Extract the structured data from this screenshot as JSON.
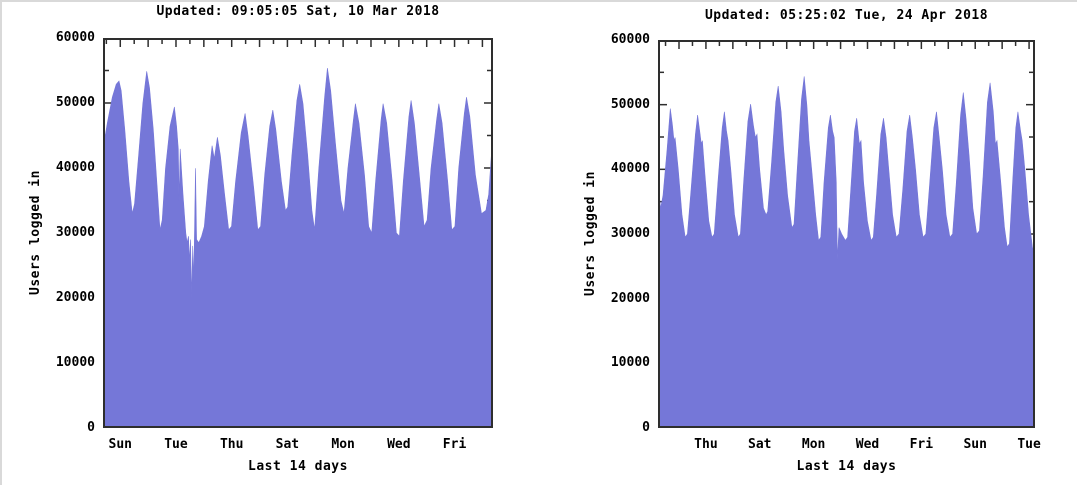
{
  "page": {
    "background": "#ffffff",
    "fill_color": "#7577d8",
    "axis_color": "#2e2e2e",
    "text_color": "#000000"
  },
  "chart_data": [
    {
      "type": "area",
      "title": "Updated: 09:05:05 Sat, 10 Mar 2018",
      "ylabel": "Users logged in",
      "xlabel": "Last 14 days",
      "ylim": [
        0,
        60000
      ],
      "yticks": [
        0,
        10000,
        20000,
        30000,
        40000,
        50000,
        60000
      ],
      "ytick_labels": [
        "0",
        "10000",
        "20000",
        "30000",
        "40000",
        "50000",
        "60000"
      ],
      "xlim_days": [
        0,
        14
      ],
      "x_tick_labels": [
        "Sun",
        "Tue",
        "Thu",
        "Sat",
        "Mon",
        "Wed",
        "Fri"
      ],
      "x_first_label_day": 0.62,
      "x_label_step_days": 2,
      "grid": false,
      "fill_color": "#7577d8",
      "series": [
        [
          0,
          44000
        ],
        [
          0.12,
          47000
        ],
        [
          0.3,
          51000
        ],
        [
          0.44,
          53000
        ],
        [
          0.54,
          53500
        ],
        [
          0.62,
          52000
        ],
        [
          0.75,
          46000
        ],
        [
          0.9,
          38000
        ],
        [
          1.02,
          33000
        ],
        [
          1.1,
          34500
        ],
        [
          1.25,
          42000
        ],
        [
          1.4,
          50000
        ],
        [
          1.54,
          55000
        ],
        [
          1.64,
          52500
        ],
        [
          1.78,
          46000
        ],
        [
          1.92,
          37000
        ],
        [
          2.02,
          30500
        ],
        [
          2.1,
          32000
        ],
        [
          2.22,
          40000
        ],
        [
          2.38,
          46500
        ],
        [
          2.54,
          49500
        ],
        [
          2.62,
          46500
        ],
        [
          2.68,
          43000
        ],
        [
          2.71,
          35000
        ],
        [
          2.75,
          43000
        ],
        [
          2.85,
          36000
        ],
        [
          2.95,
          30000
        ],
        [
          3.0,
          28500
        ],
        [
          3.05,
          29500
        ],
        [
          3.08,
          25500
        ],
        [
          3.12,
          29000
        ],
        [
          3.16,
          20000
        ],
        [
          3.2,
          28000
        ],
        [
          3.24,
          23000
        ],
        [
          3.3,
          40000
        ],
        [
          3.34,
          29000
        ],
        [
          3.42,
          28500
        ],
        [
          3.52,
          29500
        ],
        [
          3.62,
          31000
        ],
        [
          3.76,
          38000
        ],
        [
          3.9,
          43500
        ],
        [
          3.98,
          41500
        ],
        [
          4.09,
          44800
        ],
        [
          4.2,
          42000
        ],
        [
          4.35,
          36000
        ],
        [
          4.5,
          30500
        ],
        [
          4.6,
          31000
        ],
        [
          4.75,
          38000
        ],
        [
          4.95,
          45500
        ],
        [
          5.09,
          48500
        ],
        [
          5.2,
          45000
        ],
        [
          5.4,
          37000
        ],
        [
          5.55,
          30500
        ],
        [
          5.65,
          31000
        ],
        [
          5.8,
          39000
        ],
        [
          5.98,
          46500
        ],
        [
          6.09,
          49000
        ],
        [
          6.2,
          46000
        ],
        [
          6.4,
          38000
        ],
        [
          6.55,
          33500
        ],
        [
          6.63,
          34000
        ],
        [
          6.78,
          42000
        ],
        [
          6.96,
          50500
        ],
        [
          7.06,
          53000
        ],
        [
          7.18,
          50000
        ],
        [
          7.35,
          42000
        ],
        [
          7.5,
          33500
        ],
        [
          7.6,
          30500
        ],
        [
          7.75,
          40000
        ],
        [
          7.96,
          51000
        ],
        [
          8.06,
          55500
        ],
        [
          8.18,
          52000
        ],
        [
          8.35,
          44000
        ],
        [
          8.55,
          35000
        ],
        [
          8.66,
          33000
        ],
        [
          8.8,
          40000
        ],
        [
          9.0,
          47500
        ],
        [
          9.07,
          50000
        ],
        [
          9.2,
          47000
        ],
        [
          9.4,
          39000
        ],
        [
          9.55,
          31000
        ],
        [
          9.66,
          30000
        ],
        [
          9.8,
          38000
        ],
        [
          10.0,
          47500
        ],
        [
          10.07,
          50000
        ],
        [
          10.2,
          47000
        ],
        [
          10.4,
          38000
        ],
        [
          10.55,
          30000
        ],
        [
          10.66,
          29500
        ],
        [
          10.8,
          38000
        ],
        [
          11.0,
          48000
        ],
        [
          11.08,
          50500
        ],
        [
          11.2,
          47000
        ],
        [
          11.4,
          38000
        ],
        [
          11.55,
          31000
        ],
        [
          11.66,
          32000
        ],
        [
          11.8,
          40000
        ],
        [
          12.0,
          47500
        ],
        [
          12.08,
          50000
        ],
        [
          12.2,
          47000
        ],
        [
          12.4,
          38000
        ],
        [
          12.55,
          30500
        ],
        [
          12.66,
          31000
        ],
        [
          12.8,
          40000
        ],
        [
          13.0,
          48500
        ],
        [
          13.08,
          51000
        ],
        [
          13.2,
          48000
        ],
        [
          13.4,
          39000
        ],
        [
          13.62,
          33000
        ],
        [
          13.78,
          33500
        ],
        [
          13.88,
          36000
        ],
        [
          14,
          43500
        ]
      ]
    },
    {
      "type": "area",
      "title": "Updated: 05:25:02 Tue, 24 Apr 2018",
      "ylabel": "Users logged in",
      "xlabel": "Last 14 days",
      "ylim": [
        0,
        60000
      ],
      "yticks": [
        0,
        10000,
        20000,
        30000,
        40000,
        50000,
        60000
      ],
      "ytick_labels": [
        "0",
        "10000",
        "20000",
        "30000",
        "40000",
        "50000",
        "60000"
      ],
      "xlim_days": [
        0,
        14
      ],
      "x_tick_labels": [
        "Thu",
        "Sat",
        "Mon",
        "Wed",
        "Fri",
        "Sun",
        "Tue"
      ],
      "x_first_label_day": 1.78,
      "x_label_step_days": 2,
      "grid": false,
      "fill_color": "#7577d8",
      "series": [
        [
          0,
          36500
        ],
        [
          0.06,
          34000
        ],
        [
          0.15,
          36000
        ],
        [
          0.3,
          43000
        ],
        [
          0.42,
          49500
        ],
        [
          0.5,
          47000
        ],
        [
          0.56,
          44500
        ],
        [
          0.6,
          45000
        ],
        [
          0.72,
          40000
        ],
        [
          0.86,
          33000
        ],
        [
          0.98,
          29500
        ],
        [
          1.06,
          30000
        ],
        [
          1.2,
          37000
        ],
        [
          1.36,
          45500
        ],
        [
          1.44,
          48500
        ],
        [
          1.52,
          46000
        ],
        [
          1.58,
          44000
        ],
        [
          1.62,
          44500
        ],
        [
          1.72,
          39000
        ],
        [
          1.86,
          32000
        ],
        [
          1.98,
          29500
        ],
        [
          2.06,
          30000
        ],
        [
          2.2,
          38000
        ],
        [
          2.36,
          46500
        ],
        [
          2.44,
          49000
        ],
        [
          2.52,
          46000
        ],
        [
          2.58,
          44500
        ],
        [
          2.68,
          40000
        ],
        [
          2.82,
          33000
        ],
        [
          2.96,
          29500
        ],
        [
          3.04,
          30000
        ],
        [
          3.16,
          38000
        ],
        [
          3.32,
          47500
        ],
        [
          3.42,
          50200
        ],
        [
          3.52,
          47000
        ],
        [
          3.6,
          45000
        ],
        [
          3.66,
          45500
        ],
        [
          3.76,
          40000
        ],
        [
          3.9,
          34000
        ],
        [
          4.0,
          33000
        ],
        [
          4.06,
          33500
        ],
        [
          4.2,
          41000
        ],
        [
          4.36,
          50500
        ],
        [
          4.45,
          53000
        ],
        [
          4.56,
          49000
        ],
        [
          4.66,
          43000
        ],
        [
          4.8,
          36000
        ],
        [
          4.96,
          31000
        ],
        [
          5.04,
          31500
        ],
        [
          5.16,
          40000
        ],
        [
          5.32,
          51000
        ],
        [
          5.42,
          54500
        ],
        [
          5.52,
          50000
        ],
        [
          5.6,
          44500
        ],
        [
          5.7,
          40000
        ],
        [
          5.85,
          33000
        ],
        [
          5.96,
          29000
        ],
        [
          6.04,
          29500
        ],
        [
          6.16,
          38000
        ],
        [
          6.32,
          46500
        ],
        [
          6.4,
          48500
        ],
        [
          6.48,
          46000
        ],
        [
          6.54,
          45000
        ],
        [
          6.62,
          38000
        ],
        [
          6.66,
          26000
        ],
        [
          6.72,
          31000
        ],
        [
          6.82,
          30000
        ],
        [
          6.96,
          29000
        ],
        [
          7.04,
          29500
        ],
        [
          7.16,
          37000
        ],
        [
          7.3,
          46000
        ],
        [
          7.38,
          48000
        ],
        [
          7.48,
          44000
        ],
        [
          7.54,
          44500
        ],
        [
          7.64,
          38000
        ],
        [
          7.78,
          32000
        ],
        [
          7.92,
          29000
        ],
        [
          8.0,
          29500
        ],
        [
          8.12,
          36000
        ],
        [
          8.28,
          45500
        ],
        [
          8.38,
          48000
        ],
        [
          8.48,
          45000
        ],
        [
          8.58,
          40000
        ],
        [
          8.72,
          33000
        ],
        [
          8.86,
          29500
        ],
        [
          8.96,
          30000
        ],
        [
          9.1,
          37000
        ],
        [
          9.26,
          46000
        ],
        [
          9.36,
          48500
        ],
        [
          9.46,
          45000
        ],
        [
          9.58,
          40000
        ],
        [
          9.72,
          33000
        ],
        [
          9.86,
          29500
        ],
        [
          9.96,
          30000
        ],
        [
          10.1,
          37500
        ],
        [
          10.26,
          46500
        ],
        [
          10.36,
          49000
        ],
        [
          10.46,
          45000
        ],
        [
          10.58,
          40000
        ],
        [
          10.72,
          33000
        ],
        [
          10.86,
          29500
        ],
        [
          10.96,
          30000
        ],
        [
          11.1,
          38000
        ],
        [
          11.26,
          48500
        ],
        [
          11.36,
          52000
        ],
        [
          11.46,
          48000
        ],
        [
          11.58,
          42000
        ],
        [
          11.72,
          34000
        ],
        [
          11.86,
          30000
        ],
        [
          11.96,
          30500
        ],
        [
          12.1,
          39000
        ],
        [
          12.26,
          50500
        ],
        [
          12.36,
          53500
        ],
        [
          12.48,
          49000
        ],
        [
          12.56,
          44000
        ],
        [
          12.62,
          44500
        ],
        [
          12.76,
          38000
        ],
        [
          12.9,
          31000
        ],
        [
          13.0,
          28000
        ],
        [
          13.08,
          28500
        ],
        [
          13.2,
          38000
        ],
        [
          13.32,
          46500
        ],
        [
          13.4,
          49000
        ],
        [
          13.5,
          46000
        ],
        [
          13.56,
          44500
        ],
        [
          13.66,
          40000
        ],
        [
          13.8,
          33000
        ],
        [
          13.94,
          28000
        ],
        [
          14,
          26500
        ]
      ]
    }
  ]
}
